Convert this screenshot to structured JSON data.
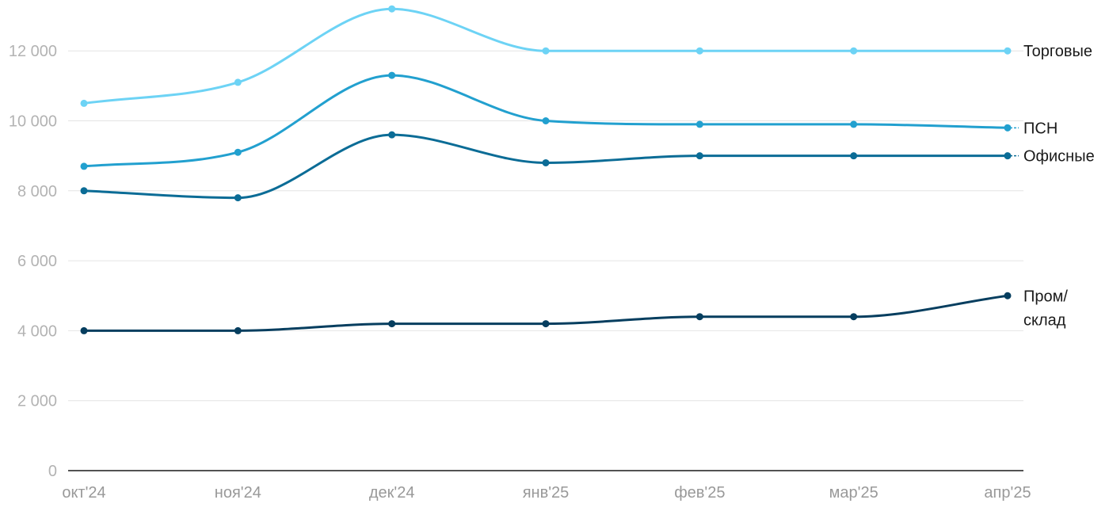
{
  "chart_data": {
    "type": "line",
    "title": "",
    "xlabel": "",
    "ylabel": "",
    "categories": [
      "окт'24",
      "ноя'24",
      "дек'24",
      "янв'25",
      "фев'25",
      "мар'25",
      "апр'25"
    ],
    "ylim": [
      0,
      13500
    ],
    "yticks": [
      0,
      2000,
      4000,
      6000,
      8000,
      10000,
      12000
    ],
    "ytick_labels": [
      "0",
      "2 000",
      "4 000",
      "6 000",
      "8 000",
      "10 000",
      "12 000"
    ],
    "grid": true,
    "legend": "right-end labels",
    "series": [
      {
        "name": "Торговые",
        "color": "#6dd3f5",
        "values": [
          10500,
          11100,
          13200,
          12000,
          12000,
          12000,
          12000
        ]
      },
      {
        "name": "ПСН",
        "color": "#22a0cf",
        "values": [
          8700,
          9100,
          11300,
          10000,
          9900,
          9900,
          9800
        ]
      },
      {
        "name": "Офисные",
        "color": "#0b6c96",
        "values": [
          8000,
          7800,
          9600,
          8800,
          9000,
          9000,
          9000
        ]
      },
      {
        "name": "Пром/ склад",
        "color": "#063e5f",
        "values": [
          4000,
          4000,
          4200,
          4200,
          4400,
          4400,
          5000
        ]
      }
    ]
  }
}
